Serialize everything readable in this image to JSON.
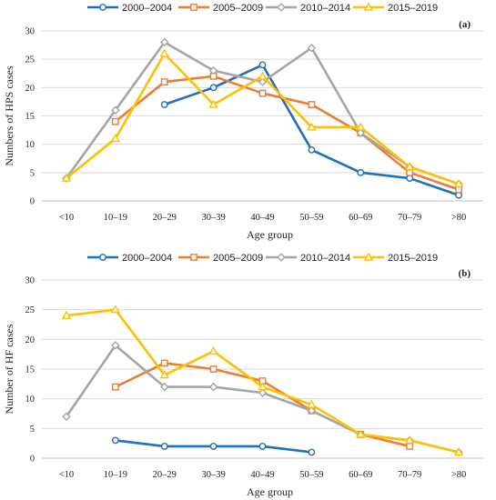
{
  "chart_data": [
    {
      "type": "line",
      "panel_label": "(a)",
      "categories": [
        "<10",
        "10–19",
        "20–29",
        "30–39",
        "40–49",
        "50–59",
        "60–69",
        "70–79",
        ">80"
      ],
      "xlabel": "Age group",
      "ylabel": "Numbers of HPS cases",
      "ylim": [
        0,
        30
      ],
      "yticks": [
        0,
        5,
        10,
        15,
        20,
        25,
        30
      ],
      "grid": true,
      "legend_position": "top",
      "series": [
        {
          "name": "2000–2004",
          "color": "#1f6fbf",
          "marker": "circle",
          "values": [
            null,
            null,
            17,
            20,
            24,
            9,
            5,
            4,
            1
          ]
        },
        {
          "name": "2005–2009",
          "color": "#ed7d31",
          "marker": "square",
          "values": [
            null,
            14,
            21,
            22,
            19,
            17,
            12,
            5,
            2
          ]
        },
        {
          "name": "2010–2014",
          "color": "#a5a5a5",
          "marker": "diamond",
          "values": [
            4,
            16,
            28,
            23,
            21,
            27,
            12,
            6,
            3
          ]
        },
        {
          "name": "2015–2019",
          "color": "#ffc000",
          "marker": "triangle",
          "values": [
            4,
            11,
            26,
            17,
            22,
            13,
            13,
            6,
            3
          ]
        }
      ]
    },
    {
      "type": "line",
      "panel_label": "(b)",
      "categories": [
        "<10",
        "10–19",
        "20–29",
        "30–39",
        "40–49",
        "50–59",
        "60–69",
        "70–79",
        ">80"
      ],
      "xlabel": "Age group",
      "ylabel": "Number of HF cases",
      "ylim": [
        0,
        30
      ],
      "yticks": [
        0,
        5,
        10,
        15,
        20,
        25,
        30
      ],
      "grid": true,
      "legend_position": "top",
      "series": [
        {
          "name": "2000–2004",
          "color": "#1f6fbf",
          "marker": "circle",
          "values": [
            null,
            3,
            2,
            2,
            2,
            1,
            null,
            null,
            null
          ]
        },
        {
          "name": "2005–2009",
          "color": "#ed7d31",
          "marker": "square",
          "values": [
            null,
            12,
            16,
            15,
            13,
            8,
            4,
            2,
            null
          ]
        },
        {
          "name": "2010–2014",
          "color": "#a5a5a5",
          "marker": "diamond",
          "values": [
            7,
            19,
            12,
            12,
            11,
            8,
            4,
            3,
            1
          ]
        },
        {
          "name": "2015–2019",
          "color": "#ffc000",
          "marker": "triangle",
          "values": [
            24,
            25,
            14,
            18,
            12,
            9,
            4,
            3,
            1
          ]
        }
      ]
    }
  ]
}
